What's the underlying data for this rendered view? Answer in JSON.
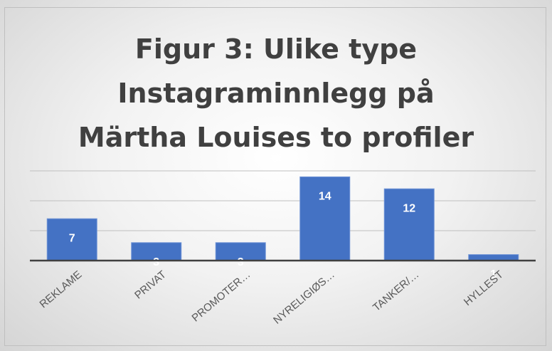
{
  "chart_data": {
    "type": "bar",
    "title": "Figur 3: Ulike type Instagraminnlegg på Märtha Louises to profiler",
    "categories": [
      "REKLAME",
      "PRIVAT",
      "PROMOTER…",
      "NYRELIGIØS…",
      "TANKER/…",
      "HYLLEST"
    ],
    "values": [
      7,
      3,
      3,
      14,
      12,
      1
    ],
    "color": "#4472c4",
    "ylim": [
      0,
      15
    ],
    "yticks": [
      0,
      5,
      10,
      15
    ],
    "grid": true
  }
}
